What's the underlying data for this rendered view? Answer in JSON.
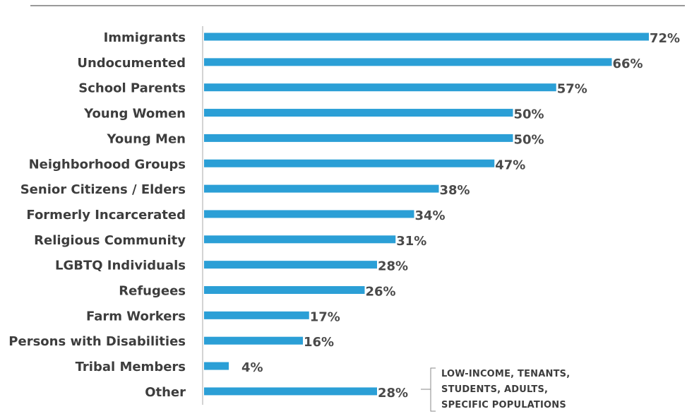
{
  "chart_data": {
    "type": "bar",
    "orientation": "horizontal",
    "categories": [
      "Immigrants",
      "Undocumented",
      "School Parents",
      "Young Women",
      "Young Men",
      "Neighborhood Groups",
      "Senior Citizens / Elders",
      "Formerly Incarcerated",
      "Religious Community",
      "LGBTQ Individuals",
      "Refugees",
      "Farm Workers",
      "Persons with Disabilities",
      "Tribal Members",
      "Other"
    ],
    "values": [
      72,
      66,
      57,
      50,
      50,
      47,
      38,
      34,
      31,
      28,
      26,
      17,
      16,
      4,
      28
    ],
    "value_labels": [
      "72%",
      "66%",
      "57%",
      "50%",
      "50%",
      "47%",
      "38%",
      "34%",
      "31%",
      "28%",
      "26%",
      "17%",
      "16%",
      "4%",
      "28%"
    ],
    "xlim": [
      0,
      72
    ],
    "title": "",
    "xlabel": "",
    "ylabel": "",
    "grid": false,
    "bar_color": "#2b9fd6",
    "annotations": [
      {
        "category": "Other",
        "text": "LOW-INCOME, TENANTS,\nSTUDENTS, ADULTS,\nSPECIFIC POPULATIONS"
      }
    ]
  }
}
